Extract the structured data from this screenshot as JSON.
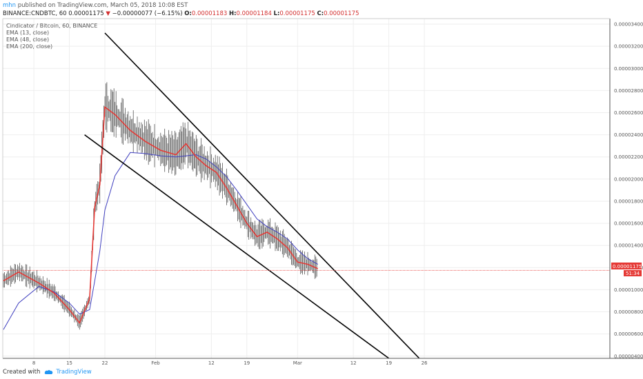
{
  "header": {
    "user": "mhn",
    "published": "published on TradingView.com, March 05, 2018 10:08 EST",
    "symbol": "BINANCE:CNDBTC, 60",
    "last": "0.00001175",
    "change": "−0.00000077 (−6.15%)",
    "o_label": "O:",
    "o_value": "0.00001183",
    "h_label": "H:",
    "h_value": "0.00001184",
    "l_label": "L:",
    "l_value": "0.00001175",
    "c_label": "C:",
    "c_value": "0.00001175"
  },
  "legend": {
    "title": "Cindicator / Bitcoin, 60, BINANCE",
    "items": [
      "EMA (13, close)",
      "EMA (48, close)",
      "EMA (200, close)"
    ]
  },
  "price_label": "0.00001175",
  "countdown": "51:34",
  "footer": {
    "created_with": "Created with",
    "brand": "TradingView"
  },
  "colors": {
    "ema13": "#e53935",
    "ema48": "#3f3fbf",
    "candle": "#555555",
    "trendline": "#000000",
    "price_line": "#e53935"
  },
  "chart_data": {
    "type": "line",
    "ylim": [
      3.8e-06,
      3.45e-05
    ],
    "y_ticks": [
      "0.00003400",
      "0.00003200",
      "0.00003000",
      "0.00002800",
      "0.00002600",
      "0.00002400",
      "0.00002200",
      "0.00002000",
      "0.00001800",
      "0.00001600",
      "0.00001400",
      "0.00001200",
      "0.00001000",
      "0.00000800",
      "0.00000600",
      "0.00000400"
    ],
    "x_ticks": [
      "8",
      "15",
      "22",
      "Feb",
      "12",
      "19",
      "Mar",
      "12",
      "19",
      "26"
    ],
    "series": [
      {
        "name": "EMA (13, close)",
        "x": [
          "Jan 2",
          "Jan 5",
          "Jan 9",
          "Jan 12",
          "Jan 15",
          "Jan 17",
          "Jan 19",
          "Jan 20",
          "Jan 21",
          "Jan 22",
          "Jan 24",
          "Jan 27",
          "Jan 30",
          "Feb 2",
          "Feb 5",
          "Feb 7",
          "Feb 9",
          "Feb 11",
          "Feb 13",
          "Feb 15",
          "Feb 17",
          "Feb 19",
          "Feb 21",
          "Feb 23",
          "Feb 25",
          "Feb 27",
          "Mar 1",
          "Mar 3",
          "Mar 5"
        ],
        "values": [
          1.08e-05,
          1.16e-05,
          1.06e-05,
          9.7e-06,
          8.2e-06,
          7e-06,
          9.2e-06,
          1.75e-05,
          1.95e-05,
          2.65e-05,
          2.583e-05,
          2.44e-05,
          2.34e-05,
          2.26e-05,
          2.22e-05,
          2.32e-05,
          2.2e-05,
          2.12e-05,
          2.06e-05,
          1.92e-05,
          1.76e-05,
          1.6e-05,
          1.48e-05,
          1.52e-05,
          1.46e-05,
          1.38e-05,
          1.25e-05,
          1.23e-05,
          1.19e-05
        ]
      },
      {
        "name": "EMA (48, close)",
        "x": [
          "Jan 2",
          "Jan 5",
          "Jan 9",
          "Jan 12",
          "Jan 15",
          "Jan 17",
          "Jan 19",
          "Jan 20",
          "Jan 21",
          "Jan 22",
          "Jan 24",
          "Jan 27",
          "Jan 30",
          "Feb 2",
          "Feb 5",
          "Feb 7",
          "Feb 9",
          "Feb 11",
          "Feb 13",
          "Feb 15",
          "Feb 17",
          "Feb 19",
          "Feb 21",
          "Feb 23",
          "Feb 25",
          "Feb 27",
          "Mar 1",
          "Mar 3",
          "Mar 5"
        ],
        "values": [
          6.4e-06,
          8.8e-06,
          1.03e-05,
          9.8e-06,
          8.8e-06,
          7.8e-06,
          8.2e-06,
          1.08e-05,
          1.35e-05,
          1.72e-05,
          2.03e-05,
          2.24e-05,
          2.23e-05,
          2.21e-05,
          2.2e-05,
          2.21e-05,
          2.22e-05,
          2.18e-05,
          2.11e-05,
          2.02e-05,
          1.9e-05,
          1.77e-05,
          1.64e-05,
          1.57e-05,
          1.52e-05,
          1.46e-05,
          1.36e-05,
          1.28e-05,
          1.23e-05
        ]
      }
    ],
    "trendlines": [
      {
        "name": "upper",
        "points": [
          [
            "Jan 22",
            3.32e-05
          ],
          [
            "Mar 25",
            3.8e-06
          ]
        ]
      },
      {
        "name": "lower",
        "points": [
          [
            "Jan 18",
            2.4e-05
          ],
          [
            "Mar 19",
            3.8e-06
          ]
        ]
      }
    ],
    "last_price": 1.175e-05
  }
}
